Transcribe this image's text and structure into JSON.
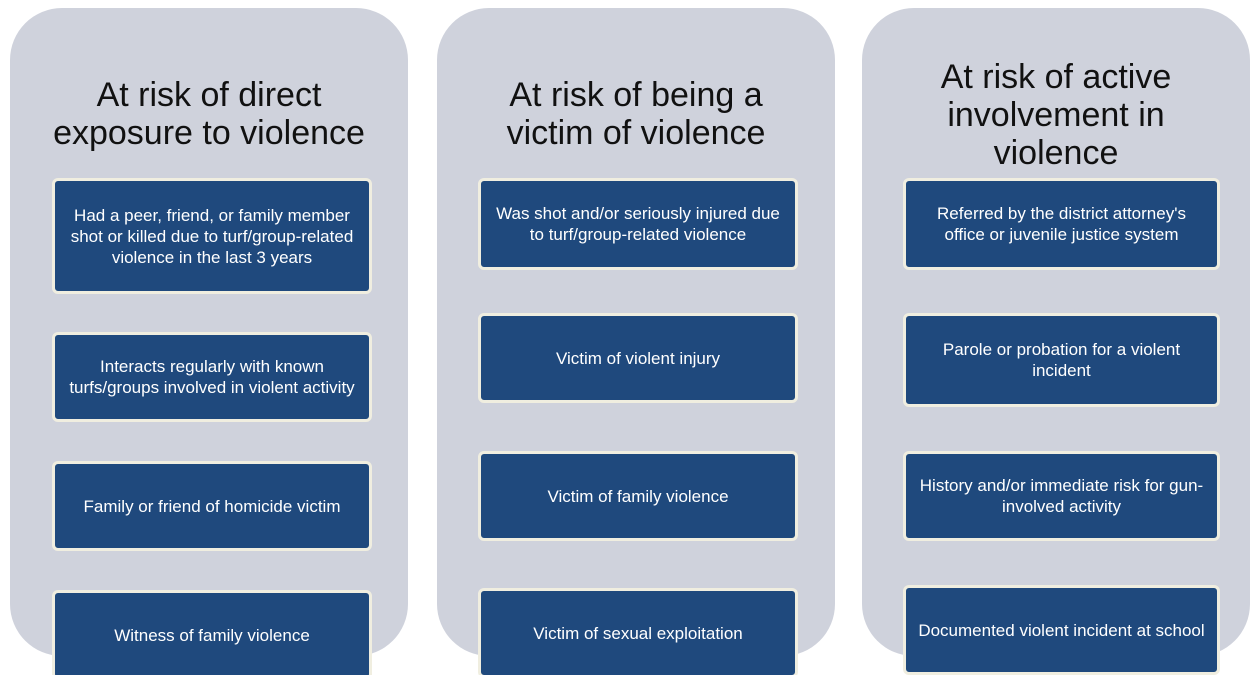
{
  "columns": [
    {
      "title": "At risk of direct exposure to violence",
      "items": [
        "Had a peer, friend, or family member shot or killed due to turf/group-related violence in the last 3 years",
        "Interacts regularly with known turfs/groups involved in violent activity",
        "Family or friend of homicide victim",
        "Witness of family violence"
      ]
    },
    {
      "title": "At risk of being a victim of violence",
      "items": [
        "Was shot and/or seriously injured due to turf/group-related violence",
        "Victim of violent injury",
        "Victim of family violence",
        "Victim of sexual exploitation"
      ]
    },
    {
      "title": "At risk of active involvement in violence",
      "items": [
        "Referred by the district attorney's office or juvenile justice system",
        "Parole or probation for a violent incident",
        "History and/or immediate risk for gun-involved activity",
        "Documented violent incident at school"
      ]
    }
  ]
}
